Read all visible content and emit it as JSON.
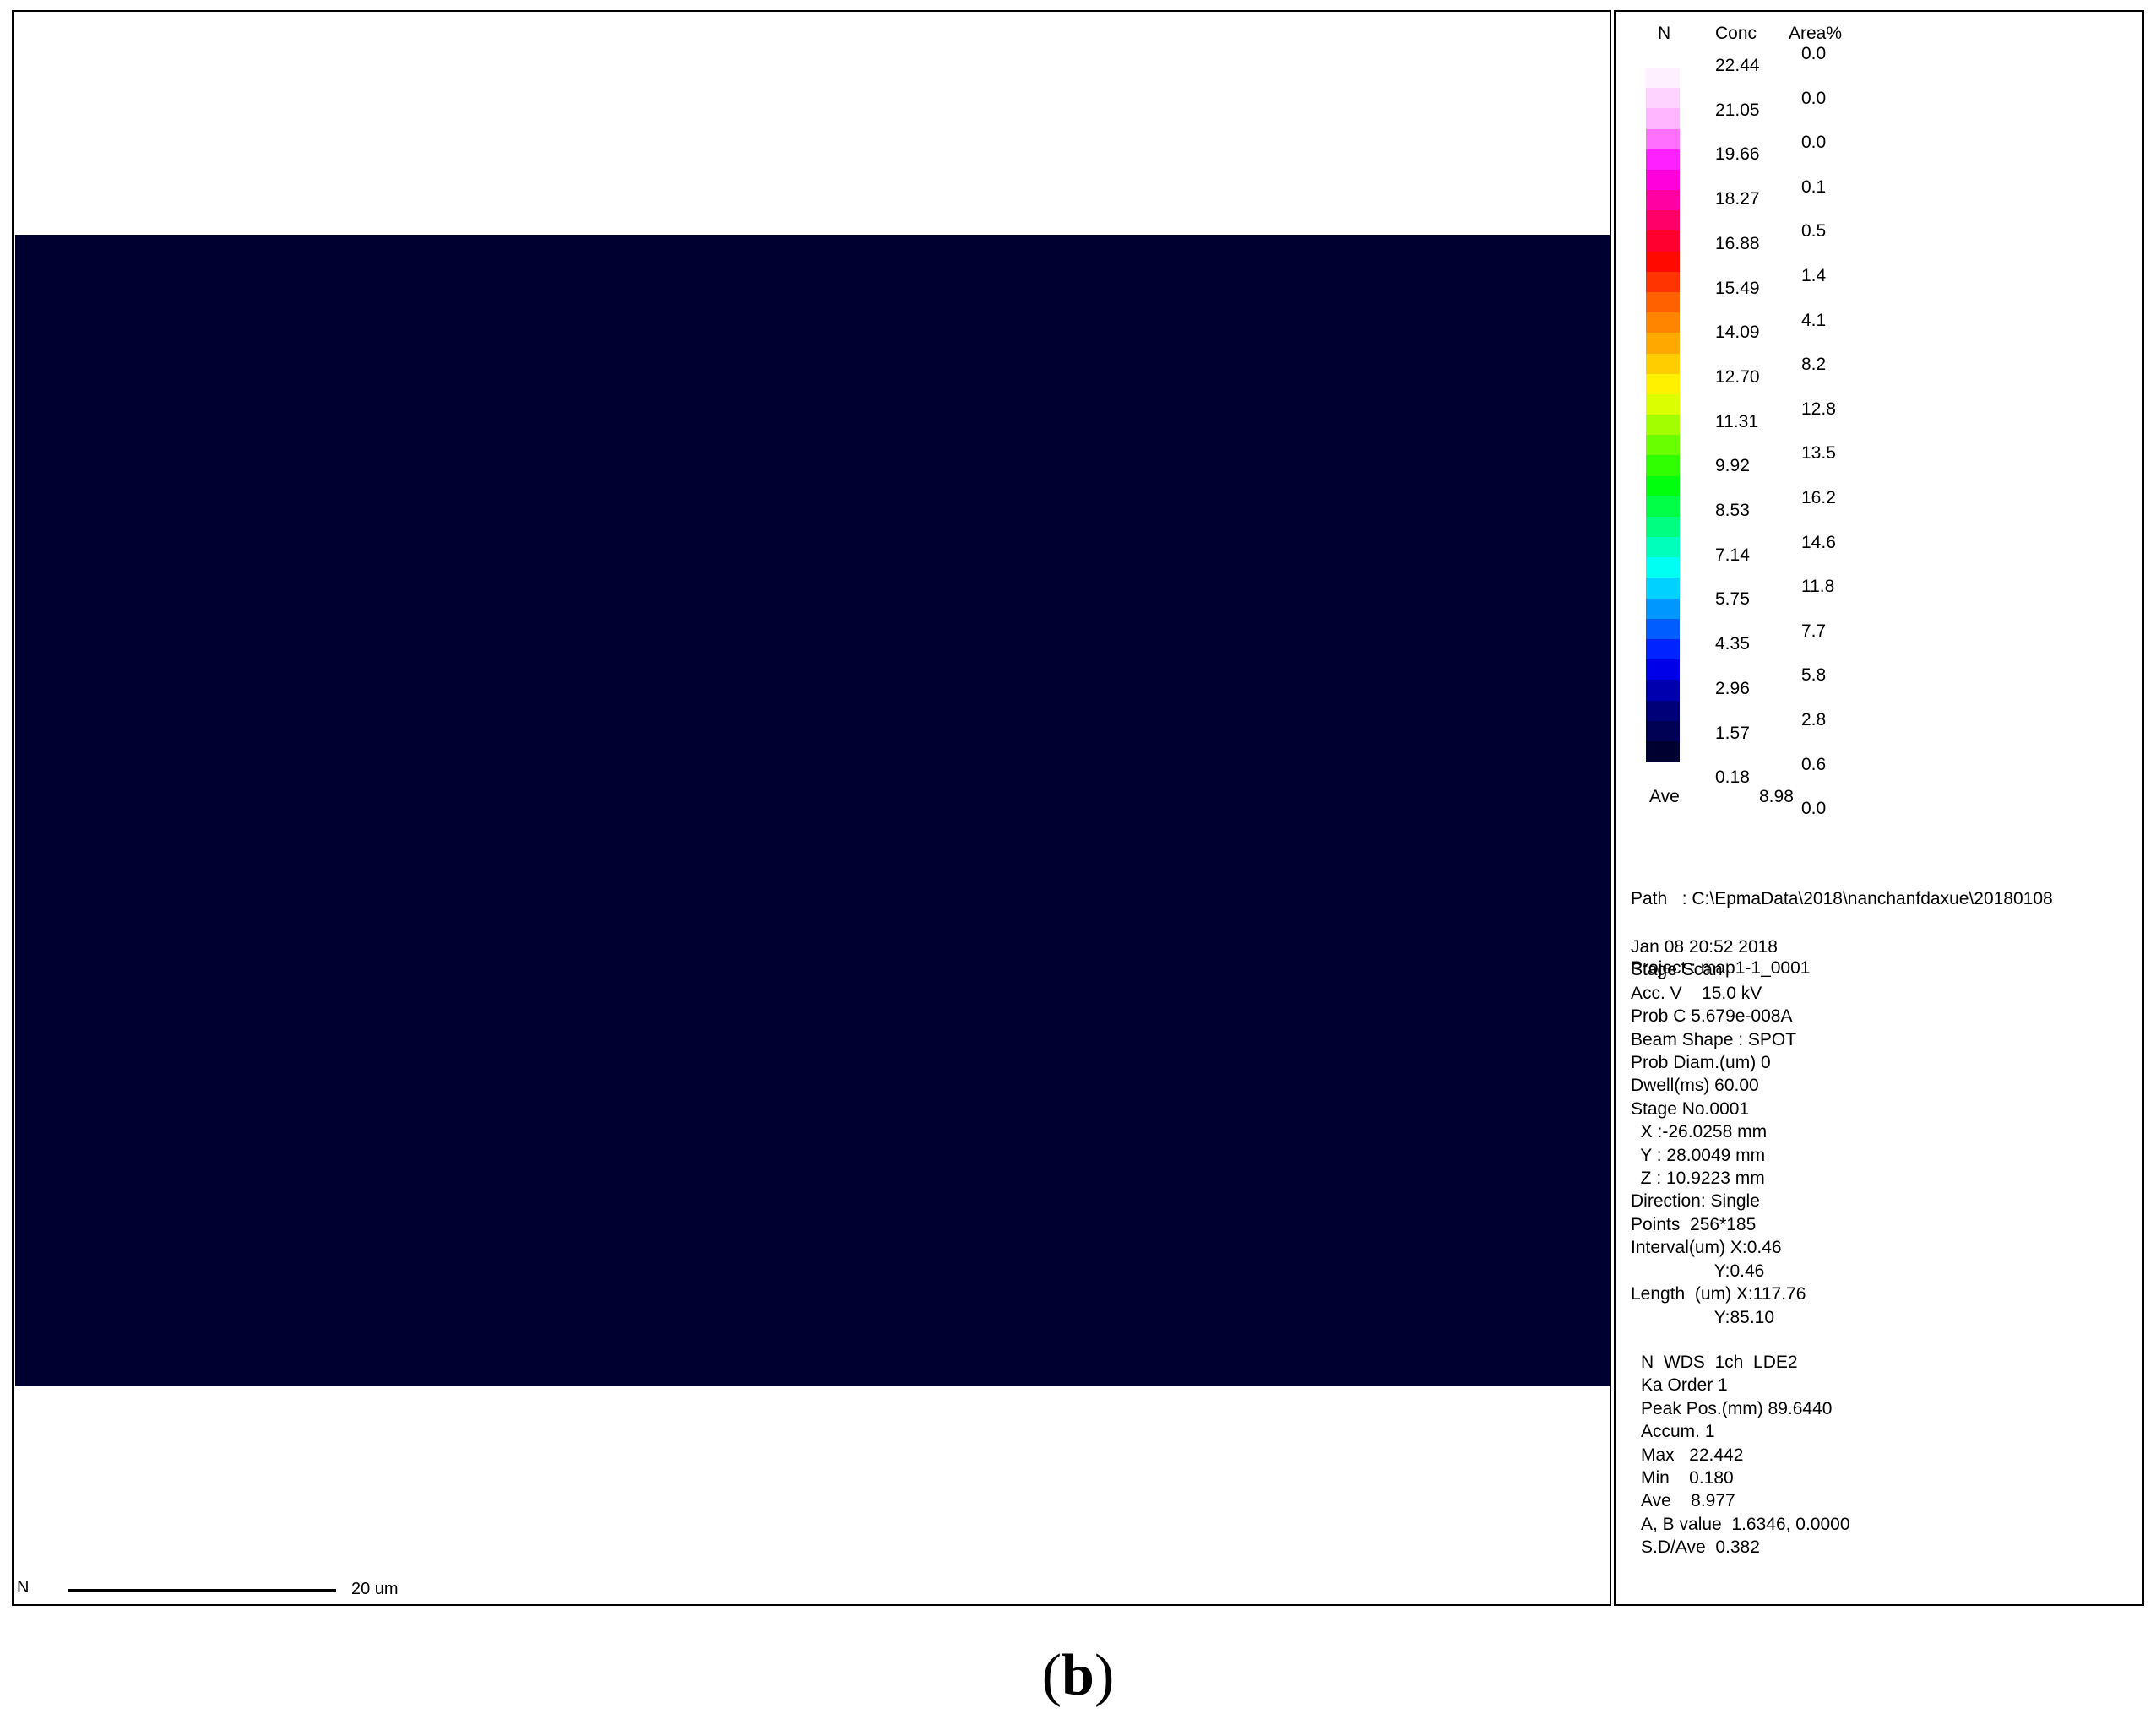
{
  "map": {
    "element_label": "N",
    "scale_bar_label": "20 um"
  },
  "legend": {
    "header_element": "N",
    "header_conc": "Conc",
    "header_area": "Area%",
    "conc_ticks": [
      "22.44",
      "21.05",
      "19.66",
      "18.27",
      "16.88",
      "15.49",
      "14.09",
      "12.70",
      "11.31",
      "9.92",
      "8.53",
      "7.14",
      "5.75",
      "4.35",
      "2.96",
      "1.57",
      "0.18"
    ],
    "area_ticks": [
      "0.0",
      "0.0",
      "0.0",
      "0.1",
      "0.5",
      "1.4",
      "4.1",
      "8.2",
      "12.8",
      "13.5",
      "16.2",
      "14.6",
      "11.8",
      "7.7",
      "5.8",
      "2.8",
      "0.6",
      "0.0"
    ],
    "ave_label": "Ave",
    "ave_value": "8.98",
    "colors": [
      "#000030",
      "#000080",
      "#0000ff",
      "#0080ff",
      "#00ffff",
      "#00ff80",
      "#00ff00",
      "#80ff00",
      "#ffff00",
      "#ffb000",
      "#ff6000",
      "#ff0000",
      "#ff0080",
      "#ff00ff",
      "#ffb0ff",
      "#fff0ff"
    ]
  },
  "info": {
    "path_lines": [
      "Path   : C:\\EpmaData\\2018\\nanchanfdaxue\\20180108",
      "Project : map1-1_0001"
    ],
    "acq_lines": [
      "Jan 08 20:52 2018",
      "Stage Scan",
      "Acc. V    15.0 kV",
      "Prob C 5.679e-008A",
      "Beam Shape : SPOT",
      "Prob Diam.(um) 0",
      "Dwell(ms) 60.00",
      "Stage No.0001",
      "  X :-26.0258 mm",
      "  Y : 28.0049 mm",
      "  Z : 10.9223 mm",
      "Direction: Single",
      "Points  256*185",
      "Interval(um) X:0.46",
      "                 Y:0.46",
      "Length  (um) X:117.76",
      "                 Y:85.10"
    ],
    "spec_lines": [
      "N  WDS  1ch  LDE2",
      "Ka Order 1",
      "Peak Pos.(mm) 89.6440",
      "Accum. 1",
      "Max   22.442",
      "Min    0.180",
      "Ave    8.977",
      "A, B value  1.6346, 0.0000",
      "S.D/Ave  0.382"
    ]
  },
  "caption": {
    "open": "(",
    "letter": "b",
    "close": ")"
  }
}
